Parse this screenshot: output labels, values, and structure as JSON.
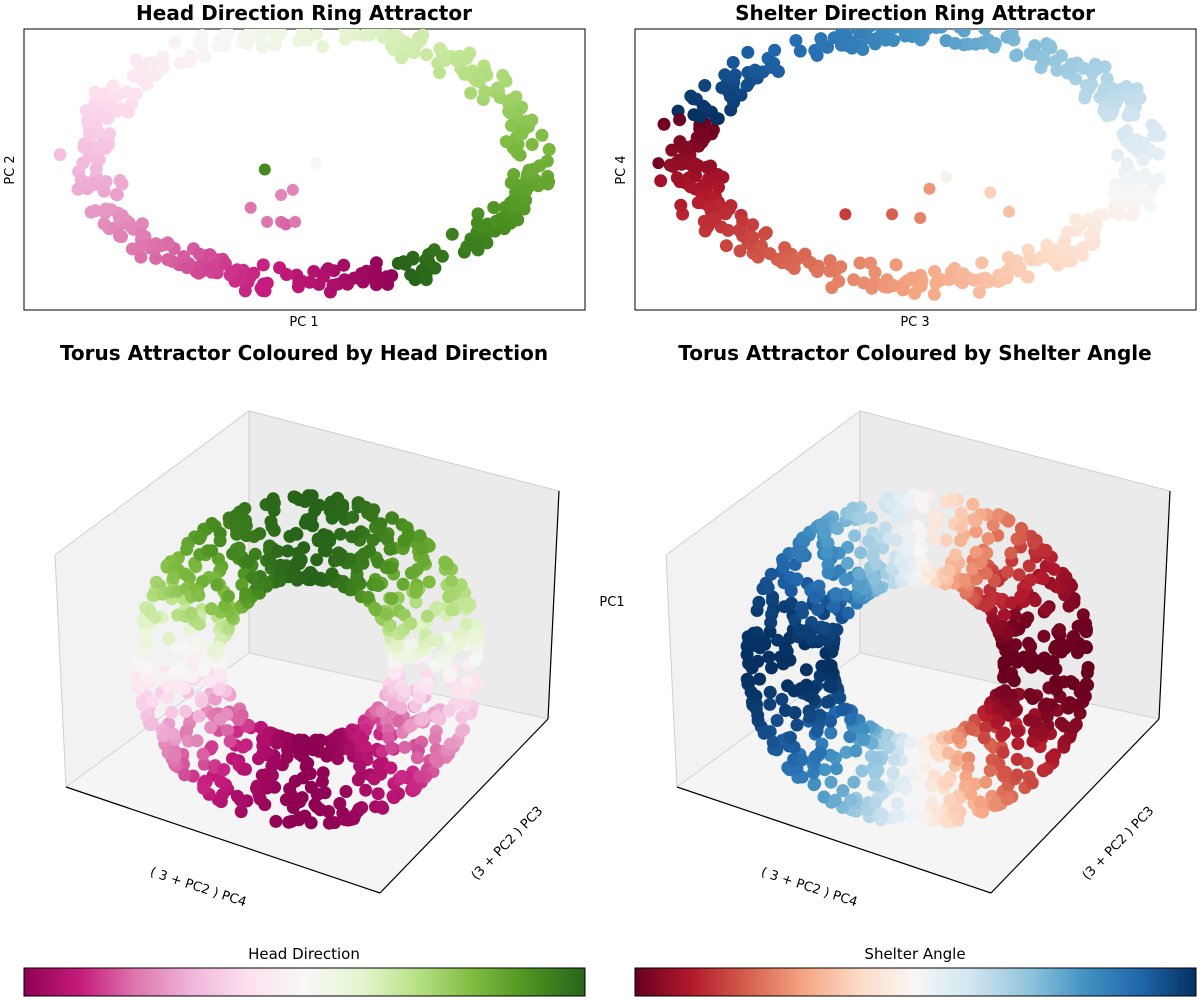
{
  "figure": {
    "panels": [
      {
        "title": "Head Direction Ring Attractor",
        "xlabel": "PC 1",
        "ylabel": "PC 2"
      },
      {
        "title": "Shelter Direction Ring Attractor",
        "xlabel": "PC 3",
        "ylabel": "PC 4"
      },
      {
        "title": "Torus Attractor Coloured by Head Direction",
        "xlabel": "( 3 + PC2 ) PC4",
        "ylabel": "(3 + PC2 ) PC3",
        "zlabel": ""
      },
      {
        "title": "Torus Attractor Coloured by Shelter Angle",
        "xlabel": "( 3 + PC2 ) PC4",
        "ylabel": "(3 + PC2 ) PC3",
        "zlabel": "PC1"
      }
    ],
    "colorbars": [
      {
        "label": "Head Direction",
        "cmap": "PiYG",
        "stops": [
          "#8e0152",
          "#c51b7d",
          "#de77ae",
          "#f1b6da",
          "#fde0ef",
          "#f7f7f7",
          "#e6f5d0",
          "#b8e186",
          "#7fbc41",
          "#4d9221",
          "#276419"
        ]
      },
      {
        "label": "Shelter Angle",
        "cmap": "RdBu",
        "stops": [
          "#67001f",
          "#b2182b",
          "#d6604d",
          "#f4a582",
          "#fddbc7",
          "#f7f7f7",
          "#d1e5f0",
          "#92c5de",
          "#4393c3",
          "#2166ac",
          "#053061"
        ]
      }
    ]
  },
  "chart_data": [
    {
      "type": "scatter",
      "title": "Head Direction Ring Attractor",
      "xlabel": "PC 1",
      "ylabel": "PC 2",
      "xlim": [
        -1.2,
        1.2
      ],
      "ylim": [
        -1.1,
        1.1
      ],
      "grid": false,
      "ticks": false,
      "color_by": "Head Direction",
      "ring": {
        "center": [
          0.02,
          0.1
        ],
        "radii": [
          0.95,
          0.98
        ],
        "thickness": 0.12,
        "n_points": 420
      },
      "outliers": [
        {
          "x": -0.17,
          "y": 0.0,
          "hue": 0.92
        },
        {
          "x": 0.05,
          "y": 0.05,
          "hue": 0.5
        },
        {
          "x": -0.1,
          "y": -0.2,
          "hue": 0.22
        },
        {
          "x": -0.05,
          "y": -0.16,
          "hue": 0.22
        },
        {
          "x": -0.23,
          "y": -0.3,
          "hue": 0.2
        },
        {
          "x": -0.16,
          "y": -0.41,
          "hue": 0.2
        },
        {
          "x": -0.1,
          "y": -0.41,
          "hue": 0.19
        },
        {
          "x": -0.08,
          "y": -0.43,
          "hue": 0.18
        },
        {
          "x": -0.04,
          "y": -0.41,
          "hue": 0.2
        }
      ]
    },
    {
      "type": "scatter",
      "title": "Shelter Direction Ring Attractor",
      "xlabel": "PC 3",
      "ylabel": "PC 4",
      "xlim": [
        -1.2,
        1.2
      ],
      "ylim": [
        -1.1,
        1.1
      ],
      "grid": false,
      "ticks": false,
      "color_by": "Shelter Angle",
      "ring": {
        "center": [
          0.0,
          0.1
        ],
        "radii": [
          0.96,
          0.97
        ],
        "thickness": 0.14,
        "n_points": 460
      },
      "outliers": [
        {
          "x": -1.1,
          "y": 0.05,
          "hue": 0.02
        },
        {
          "x": 0.06,
          "y": -0.15,
          "hue": 0.28
        },
        {
          "x": 0.13,
          "y": -0.06,
          "hue": 0.48
        },
        {
          "x": -0.3,
          "y": -0.35,
          "hue": 0.15
        },
        {
          "x": -0.1,
          "y": -0.35,
          "hue": 0.2
        },
        {
          "x": 0.02,
          "y": -0.38,
          "hue": 0.25
        },
        {
          "x": 0.32,
          "y": -0.18,
          "hue": 0.38
        },
        {
          "x": 0.4,
          "y": -0.33,
          "hue": 0.35
        }
      ]
    },
    {
      "type": "scatter3d",
      "title": "Torus Attractor Coloured by Head Direction",
      "xlabel": "( 3 + PC2 ) PC4",
      "ylabel": "(3 + PC2 ) PC3",
      "zlabel": "",
      "color_by": "Head Direction",
      "grid": false,
      "ticks": false,
      "torus": {
        "R": 3,
        "r": 1,
        "n_points": 900
      }
    },
    {
      "type": "scatter3d",
      "title": "Torus Attractor Coloured by Shelter Angle",
      "xlabel": "( 3 + PC2 ) PC4",
      "ylabel": "(3 + PC2 ) PC3",
      "zlabel": "PC1",
      "color_by": "Shelter Angle",
      "grid": false,
      "ticks": false,
      "torus": {
        "R": 3,
        "r": 1,
        "n_points": 900
      }
    }
  ]
}
